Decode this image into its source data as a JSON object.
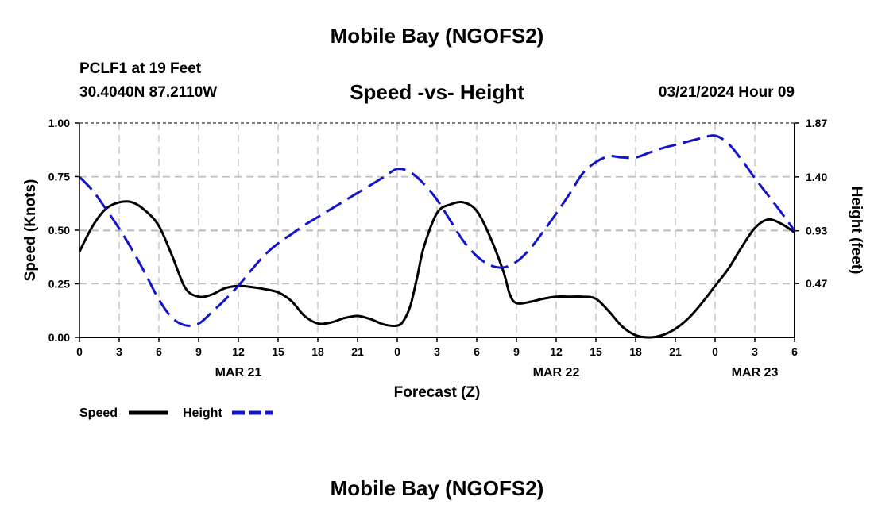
{
  "header": {
    "title": "Mobile Bay (NGOFS2)",
    "station": "PCLF1 at 19 Feet",
    "coords": "30.4040N  87.2110W",
    "subtitle": "Speed -vs- Height",
    "timestamp": "03/21/2024 Hour 09",
    "bottom_title": "Mobile Bay (NGOFS2)"
  },
  "chart_data": {
    "type": "line",
    "xlabel": "Forecast (Z)",
    "ylabel": "Speed (Knots)",
    "y2label": "Height (feet)",
    "x_range": [
      0,
      54
    ],
    "ylim": [
      0,
      1.0
    ],
    "y2lim": [
      0,
      1.87
    ],
    "x_ticks": [
      {
        "x": 0,
        "label": "0"
      },
      {
        "x": 3,
        "label": "3"
      },
      {
        "x": 6,
        "label": "6"
      },
      {
        "x": 9,
        "label": "9"
      },
      {
        "x": 12,
        "label": "12"
      },
      {
        "x": 15,
        "label": "15"
      },
      {
        "x": 18,
        "label": "18"
      },
      {
        "x": 21,
        "label": "21"
      },
      {
        "x": 24,
        "label": "0"
      },
      {
        "x": 27,
        "label": "3"
      },
      {
        "x": 30,
        "label": "6"
      },
      {
        "x": 33,
        "label": "9"
      },
      {
        "x": 36,
        "label": "12"
      },
      {
        "x": 39,
        "label": "15"
      },
      {
        "x": 42,
        "label": "18"
      },
      {
        "x": 45,
        "label": "21"
      },
      {
        "x": 48,
        "label": "0"
      },
      {
        "x": 51,
        "label": "3"
      },
      {
        "x": 54,
        "label": "6"
      }
    ],
    "date_labels": [
      {
        "x": 12,
        "label": "MAR 21"
      },
      {
        "x": 36,
        "label": "MAR 22"
      },
      {
        "x": 51,
        "label": "MAR 23"
      }
    ],
    "y_ticks": [
      {
        "v": 0.0,
        "label": "0.00"
      },
      {
        "v": 0.25,
        "label": "0.25"
      },
      {
        "v": 0.5,
        "label": "0.50"
      },
      {
        "v": 0.75,
        "label": "0.75"
      },
      {
        "v": 1.0,
        "label": "1.00"
      }
    ],
    "y2_ticks": [
      {
        "v": 0.47,
        "label": "0.47"
      },
      {
        "v": 0.93,
        "label": "0.93"
      },
      {
        "v": 1.4,
        "label": "1.40"
      },
      {
        "v": 1.87,
        "label": "1.87"
      }
    ],
    "series": [
      {
        "name": "Speed",
        "axis": "left",
        "color": "#000000",
        "dash": "solid",
        "points": [
          [
            0,
            0.4
          ],
          [
            1,
            0.52
          ],
          [
            2,
            0.6
          ],
          [
            3,
            0.63
          ],
          [
            4,
            0.63
          ],
          [
            5,
            0.59
          ],
          [
            6,
            0.52
          ],
          [
            7,
            0.38
          ],
          [
            8,
            0.23
          ],
          [
            9,
            0.19
          ],
          [
            10,
            0.2
          ],
          [
            11,
            0.23
          ],
          [
            12,
            0.24
          ],
          [
            13,
            0.235
          ],
          [
            14,
            0.225
          ],
          [
            15,
            0.21
          ],
          [
            16,
            0.17
          ],
          [
            17,
            0.1
          ],
          [
            18,
            0.065
          ],
          [
            19,
            0.07
          ],
          [
            20,
            0.09
          ],
          [
            21,
            0.1
          ],
          [
            22,
            0.085
          ],
          [
            23,
            0.06
          ],
          [
            24,
            0.055
          ],
          [
            24.5,
            0.08
          ],
          [
            25,
            0.15
          ],
          [
            25.5,
            0.28
          ],
          [
            26,
            0.42
          ],
          [
            27,
            0.58
          ],
          [
            28,
            0.62
          ],
          [
            29,
            0.63
          ],
          [
            30,
            0.59
          ],
          [
            31,
            0.47
          ],
          [
            32,
            0.31
          ],
          [
            32.5,
            0.2
          ],
          [
            33,
            0.16
          ],
          [
            34,
            0.165
          ],
          [
            35,
            0.18
          ],
          [
            36,
            0.19
          ],
          [
            37,
            0.19
          ],
          [
            38,
            0.19
          ],
          [
            39,
            0.18
          ],
          [
            40,
            0.12
          ],
          [
            41,
            0.05
          ],
          [
            42,
            0.01
          ],
          [
            43,
            0.0
          ],
          [
            44,
            0.01
          ],
          [
            45,
            0.04
          ],
          [
            46,
            0.09
          ],
          [
            47,
            0.16
          ],
          [
            48,
            0.24
          ],
          [
            49,
            0.32
          ],
          [
            50,
            0.42
          ],
          [
            51,
            0.51
          ],
          [
            52,
            0.55
          ],
          [
            53,
            0.53
          ],
          [
            54,
            0.49
          ]
        ]
      },
      {
        "name": "Height",
        "axis": "right",
        "color": "#1414c8",
        "dash": "dashed",
        "points": [
          [
            0,
            1.4
          ],
          [
            1,
            1.28
          ],
          [
            2,
            1.12
          ],
          [
            3,
            0.95
          ],
          [
            4,
            0.76
          ],
          [
            5,
            0.55
          ],
          [
            6,
            0.33
          ],
          [
            7,
            0.17
          ],
          [
            8,
            0.105
          ],
          [
            9,
            0.12
          ],
          [
            10,
            0.22
          ],
          [
            11,
            0.33
          ],
          [
            12,
            0.45
          ],
          [
            13,
            0.59
          ],
          [
            14,
            0.72
          ],
          [
            15,
            0.82
          ],
          [
            16,
            0.9
          ],
          [
            17,
            0.98
          ],
          [
            18,
            1.05
          ],
          [
            19,
            1.12
          ],
          [
            20,
            1.19
          ],
          [
            21,
            1.26
          ],
          [
            22,
            1.33
          ],
          [
            23,
            1.4
          ],
          [
            24,
            1.47
          ],
          [
            25,
            1.44
          ],
          [
            26,
            1.34
          ],
          [
            27,
            1.2
          ],
          [
            28,
            1.02
          ],
          [
            29,
            0.84
          ],
          [
            30,
            0.71
          ],
          [
            31,
            0.63
          ],
          [
            32,
            0.61
          ],
          [
            33,
            0.66
          ],
          [
            34,
            0.77
          ],
          [
            35,
            0.92
          ],
          [
            36,
            1.08
          ],
          [
            37,
            1.25
          ],
          [
            38,
            1.43
          ],
          [
            39,
            1.53
          ],
          [
            40,
            1.58
          ],
          [
            41,
            1.57
          ],
          [
            42,
            1.57
          ],
          [
            43,
            1.61
          ],
          [
            44,
            1.65
          ],
          [
            45,
            1.68
          ],
          [
            46,
            1.71
          ],
          [
            47,
            1.74
          ],
          [
            48,
            1.76
          ],
          [
            49,
            1.69
          ],
          [
            50,
            1.55
          ],
          [
            51,
            1.39
          ],
          [
            52,
            1.24
          ],
          [
            53,
            1.09
          ],
          [
            54,
            0.93
          ]
        ]
      }
    ]
  }
}
